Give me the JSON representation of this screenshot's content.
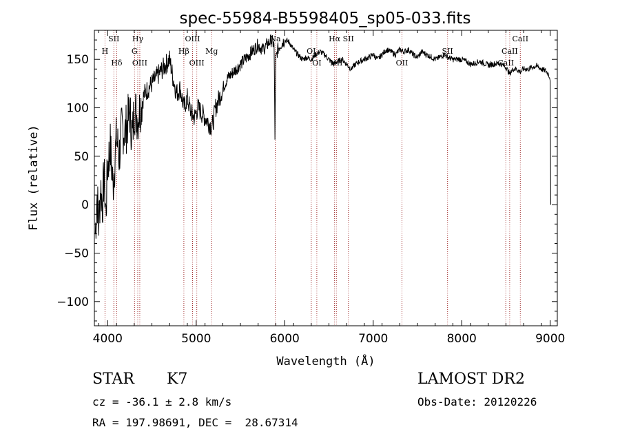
{
  "chart_data": {
    "type": "line",
    "title": "spec-55984-B5598405_sp05-033.fits",
    "xlabel": "Wavelength (Å)",
    "ylabel": "Flux (relative)",
    "xlim": [
      3850,
      9080
    ],
    "ylim": [
      -125,
      180
    ],
    "xticks": [
      4000,
      5000,
      6000,
      7000,
      8000,
      9000
    ],
    "yticks": [
      -100,
      -50,
      0,
      50,
      100,
      150
    ],
    "grid": false,
    "series": [
      {
        "color": "#000000",
        "x": [
          3860,
          3880,
          3900,
          3920,
          3940,
          3960,
          3980,
          4000,
          4030,
          4060,
          4100,
          4130,
          4160,
          4200,
          4250,
          4280,
          4300,
          4340,
          4380,
          4420,
          4460,
          4500,
          4540,
          4580,
          4620,
          4660,
          4700,
          4740,
          4780,
          4820,
          4860,
          4900,
          4940,
          4980,
          5020,
          5060,
          5100,
          5140,
          5180,
          5220,
          5260,
          5300,
          5350,
          5400,
          5450,
          5500,
          5550,
          5600,
          5650,
          5700,
          5750,
          5800,
          5850,
          5880,
          5890,
          5900,
          5920,
          5950,
          6000,
          6050,
          6100,
          6150,
          6200,
          6250,
          6300,
          6350,
          6400,
          6450,
          6500,
          6550,
          6600,
          6650,
          6700,
          6750,
          6800,
          6850,
          6900,
          6950,
          7000,
          7050,
          7100,
          7150,
          7200,
          7250,
          7300,
          7350,
          7400,
          7450,
          7500,
          7550,
          7600,
          7650,
          7700,
          7750,
          7800,
          7850,
          7900,
          7950,
          8000,
          8050,
          8100,
          8150,
          8200,
          8250,
          8300,
          8350,
          8400,
          8450,
          8500,
          8540,
          8580,
          8620,
          8660,
          8700,
          8750,
          8800,
          8850,
          8900,
          8950,
          8980,
          9000,
          9005
        ],
        "y": [
          -30,
          10,
          -20,
          20,
          0,
          30,
          -10,
          40,
          60,
          20,
          70,
          50,
          80,
          75,
          95,
          70,
          100,
          90,
          105,
          115,
          120,
          125,
          130,
          135,
          140,
          145,
          150,
          130,
          115,
          120,
          100,
          110,
          95,
          90,
          100,
          95,
          90,
          85,
          80,
          100,
          110,
          120,
          130,
          135,
          140,
          145,
          150,
          155,
          160,
          165,
          160,
          165,
          170,
          165,
          70,
          150,
          160,
          165,
          170,
          168,
          160,
          155,
          150,
          152,
          150,
          155,
          158,
          155,
          150,
          145,
          148,
          150,
          145,
          140,
          145,
          148,
          150,
          152,
          155,
          150,
          155,
          160,
          158,
          155,
          160,
          158,
          160,
          155,
          152,
          158,
          155,
          153,
          150,
          152,
          155,
          152,
          150,
          150,
          150,
          148,
          145,
          146,
          148,
          146,
          144,
          145,
          146,
          145,
          142,
          135,
          140,
          140,
          137,
          140,
          140,
          142,
          143,
          140,
          138,
          135,
          130,
          0
        ]
      }
    ],
    "lines": [
      {
        "label": "H",
        "wave": 3970,
        "row": 2
      },
      {
        "label": "SII",
        "wave": 4070,
        "row": 1
      },
      {
        "label": "Hδ",
        "wave": 4102,
        "row": 3
      },
      {
        "label": "Hγ",
        "wave": 4340,
        "row": 1
      },
      {
        "label": "G",
        "wave": 4304,
        "row": 2
      },
      {
        "label": "OIII",
        "wave": 4363,
        "row": 3
      },
      {
        "label": "OIII",
        "wave": 4959,
        "row": 1
      },
      {
        "label": "Hβ",
        "wave": 4861,
        "row": 2
      },
      {
        "label": "OIII",
        "wave": 5007,
        "row": 3
      },
      {
        "label": "Mg",
        "wave": 5175,
        "row": 2
      },
      {
        "label": "Na",
        "wave": 5893,
        "row": 1
      },
      {
        "label": "OI",
        "wave": 6300,
        "row": 2
      },
      {
        "label": "OI",
        "wave": 6363,
        "row": 3
      },
      {
        "label": "Hα",
        "wave": 6563,
        "row": 1
      },
      {
        "label": "NII",
        "wave": 6584,
        "row": 3
      },
      {
        "label": "SII",
        "wave": 6720,
        "row": 1
      },
      {
        "label": "OII",
        "wave": 7325,
        "row": 3
      },
      {
        "label": "SII",
        "wave": 7840,
        "row": 2
      },
      {
        "label": "CaII",
        "wave": 8498,
        "row": 3
      },
      {
        "label": "CaII",
        "wave": 8542,
        "row": 2
      },
      {
        "label": "CaII",
        "wave": 8662,
        "row": 1
      }
    ]
  },
  "info": {
    "object_class": "STAR",
    "subclass": "K7",
    "survey": "LAMOST DR2",
    "cz": "cz = -36.1 ± 2.8 km/s",
    "obs_date": "Obs-Date: 20120226",
    "coords": "RA = 197.98691, DEC =  28.67314"
  }
}
